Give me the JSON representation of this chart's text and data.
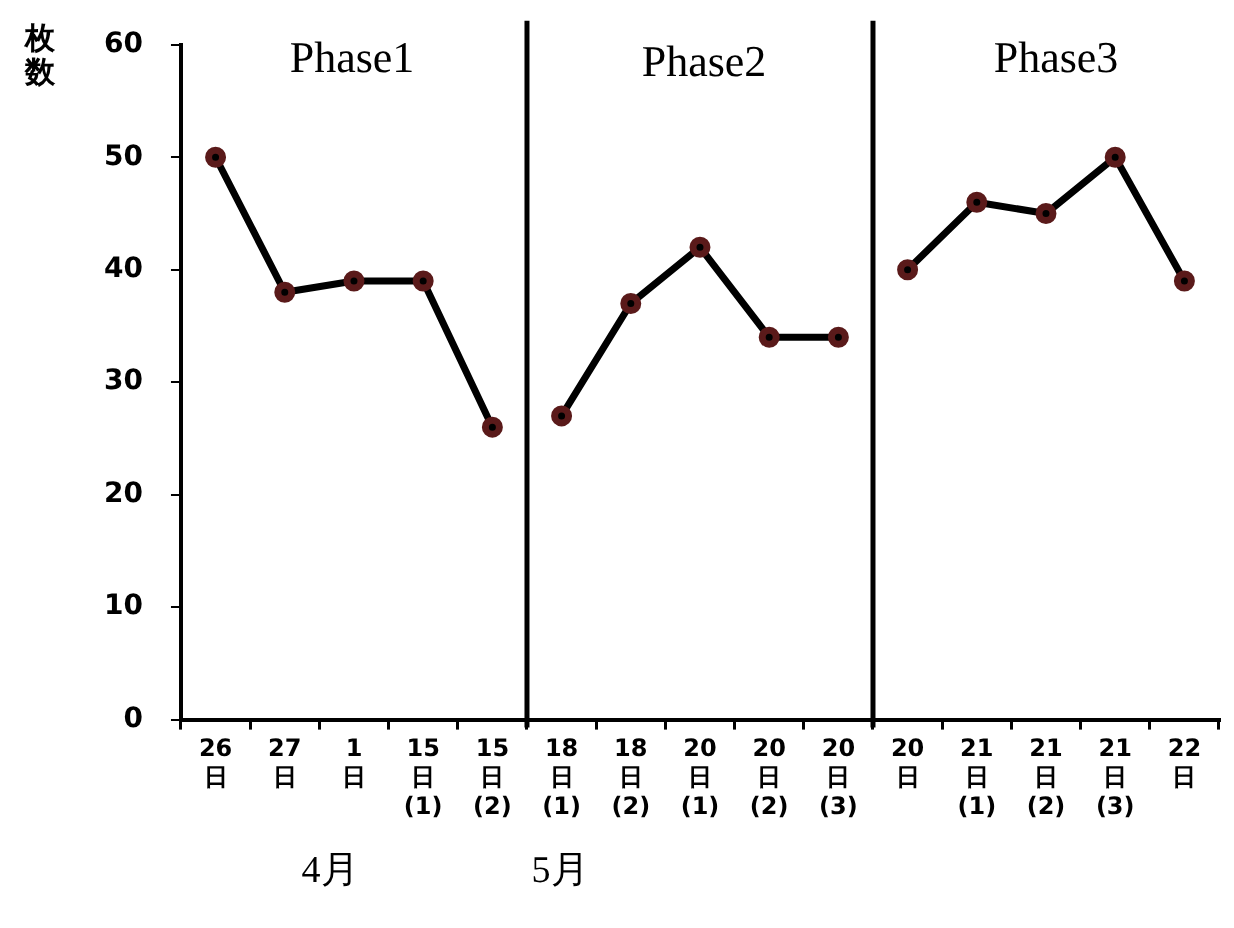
{
  "chart_data": {
    "type": "line",
    "ylabel": "枚数",
    "categories": [
      "26日",
      "27日",
      "1日",
      "15日(1)",
      "15日(2)",
      "18日(1)",
      "18日(2)",
      "20日(1)",
      "20日(2)",
      "20日(3)",
      "20日",
      "21日(1)",
      "21日(2)",
      "21日(3)",
      "22日"
    ],
    "series": [
      {
        "color": "#000000",
        "values": [
          50,
          38,
          39,
          39,
          26,
          null,
          null,
          null,
          null,
          null,
          null,
          null,
          null,
          null,
          null
        ]
      },
      {
        "color": "#000000",
        "values": [
          null,
          null,
          null,
          null,
          null,
          27,
          37,
          42,
          34,
          34,
          null,
          null,
          null,
          null,
          null
        ]
      },
      {
        "color": "#000000",
        "values": [
          null,
          null,
          null,
          null,
          null,
          null,
          null,
          null,
          null,
          null,
          40,
          46,
          45,
          50,
          39
        ]
      }
    ],
    "ylim": [
      0,
      60
    ],
    "yticks": [
      0,
      10,
      20,
      30,
      40,
      50,
      60
    ],
    "grid": false,
    "legend": false,
    "marker": "circle",
    "line_style": "solid",
    "annotations": [
      "Phase1",
      "Phase2",
      "Phase3",
      "4月",
      "5月"
    ]
  }
}
